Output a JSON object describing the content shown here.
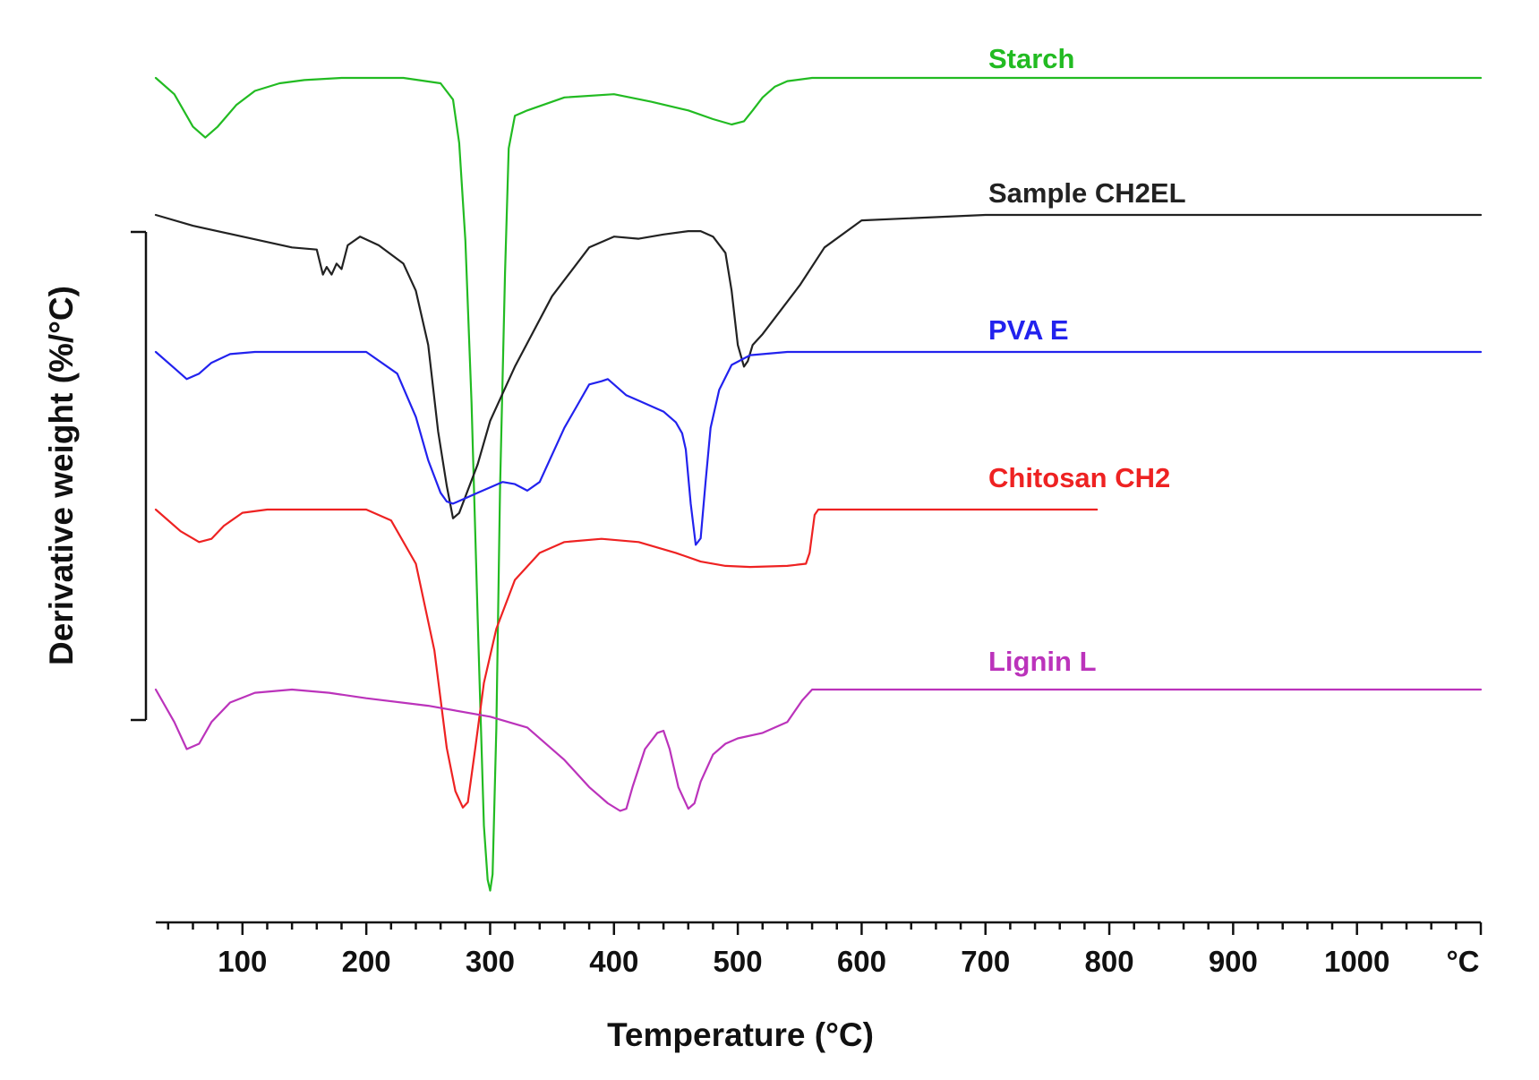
{
  "chart_data": {
    "type": "line",
    "title": "",
    "xlabel": "Temperature (°C)",
    "ylabel": "Derivative weight (%/°C)",
    "xlim": [
      30,
      1100
    ],
    "x_ticks": [
      100,
      200,
      300,
      400,
      500,
      600,
      700,
      800,
      900,
      1000
    ],
    "x_tick_labels": [
      "100",
      "200",
      "300",
      "400",
      "500",
      "600",
      "700",
      "800",
      "900",
      "1000"
    ],
    "x_unit_tick_label": "°C",
    "y_ticks_shown": false,
    "curves_offset_vertically": true,
    "series": [
      {
        "name": "Starch",
        "color": "#22bb22",
        "x": [
          30,
          45,
          60,
          70,
          80,
          95,
          110,
          130,
          150,
          180,
          230,
          260,
          270,
          275,
          280,
          285,
          290,
          295,
          298,
          300,
          302,
          305,
          308,
          312,
          315,
          320,
          330,
          360,
          400,
          430,
          460,
          480,
          495,
          505,
          512,
          520,
          530,
          540,
          560,
          600,
          700,
          800,
          900,
          1000,
          1100
        ],
        "y": [
          0,
          -0.15,
          -0.45,
          -0.55,
          -0.45,
          -0.25,
          -0.12,
          -0.05,
          -0.02,
          0,
          0,
          -0.05,
          -0.2,
          -0.6,
          -1.5,
          -3.0,
          -5.0,
          -6.9,
          -7.4,
          -7.5,
          -7.35,
          -6.0,
          -3.8,
          -1.8,
          -0.65,
          -0.35,
          -0.3,
          -0.18,
          -0.15,
          -0.22,
          -0.3,
          -0.38,
          -0.43,
          -0.4,
          -0.3,
          -0.18,
          -0.08,
          -0.03,
          0,
          0,
          0,
          0,
          0,
          0,
          0
        ]
      },
      {
        "name": "Sample CH2EL",
        "color": "#222222",
        "x": [
          30,
          60,
          100,
          140,
          160,
          165,
          168,
          172,
          176,
          180,
          185,
          195,
          210,
          230,
          240,
          250,
          258,
          265,
          270,
          275,
          280,
          290,
          300,
          320,
          350,
          380,
          400,
          420,
          440,
          460,
          470,
          480,
          490,
          495,
          500,
          505,
          508,
          512,
          520,
          530,
          550,
          570,
          600,
          700,
          800,
          900,
          1000,
          1100
        ],
        "y": [
          0,
          -0.1,
          -0.2,
          -0.3,
          -0.32,
          -0.55,
          -0.48,
          -0.55,
          -0.45,
          -0.5,
          -0.28,
          -0.2,
          -0.28,
          -0.45,
          -0.7,
          -1.2,
          -2.0,
          -2.5,
          -2.8,
          -2.75,
          -2.6,
          -2.3,
          -1.9,
          -1.4,
          -0.75,
          -0.3,
          -0.2,
          -0.22,
          -0.18,
          -0.15,
          -0.15,
          -0.2,
          -0.35,
          -0.7,
          -1.2,
          -1.4,
          -1.35,
          -1.2,
          -1.1,
          -0.95,
          -0.65,
          -0.3,
          -0.05,
          0,
          0,
          0,
          0,
          0
        ]
      },
      {
        "name": "PVA E",
        "color": "#2222ee",
        "x": [
          30,
          45,
          55,
          65,
          75,
          90,
          110,
          150,
          200,
          225,
          240,
          250,
          260,
          265,
          270,
          280,
          290,
          300,
          310,
          320,
          330,
          340,
          350,
          360,
          370,
          380,
          390,
          395,
          400,
          410,
          420,
          440,
          450,
          455,
          458,
          462,
          466,
          470,
          474,
          478,
          485,
          495,
          510,
          540,
          600,
          700,
          800,
          900,
          1000,
          1100
        ],
        "y": [
          0,
          -0.15,
          -0.25,
          -0.2,
          -0.1,
          -0.02,
          0,
          0,
          0,
          -0.2,
          -0.6,
          -1.0,
          -1.3,
          -1.38,
          -1.4,
          -1.35,
          -1.3,
          -1.25,
          -1.2,
          -1.22,
          -1.28,
          -1.2,
          -0.95,
          -0.7,
          -0.5,
          -0.3,
          -0.27,
          -0.25,
          -0.3,
          -0.4,
          -0.45,
          -0.55,
          -0.65,
          -0.75,
          -0.9,
          -1.4,
          -1.78,
          -1.72,
          -1.2,
          -0.7,
          -0.35,
          -0.12,
          -0.03,
          0,
          0,
          0,
          0,
          0,
          0,
          0
        ]
      },
      {
        "name": "Chitosan CH2",
        "color": "#ee2222",
        "x": [
          30,
          50,
          65,
          75,
          85,
          100,
          120,
          200,
          220,
          240,
          255,
          265,
          272,
          278,
          282,
          288,
          295,
          305,
          320,
          340,
          360,
          390,
          420,
          450,
          470,
          490,
          510,
          540,
          555,
          558,
          562,
          565,
          600,
          700,
          790
        ],
        "y": [
          0,
          -0.2,
          -0.3,
          -0.27,
          -0.15,
          -0.03,
          0,
          0,
          -0.1,
          -0.5,
          -1.3,
          -2.2,
          -2.6,
          -2.75,
          -2.7,
          -2.2,
          -1.6,
          -1.1,
          -0.65,
          -0.4,
          -0.3,
          -0.27,
          -0.3,
          -0.4,
          -0.48,
          -0.52,
          -0.53,
          -0.52,
          -0.5,
          -0.4,
          -0.05,
          0,
          0,
          0,
          0
        ]
      },
      {
        "name": "Lignin L",
        "color": "#bb33bb",
        "x": [
          30,
          45,
          55,
          65,
          75,
          90,
          110,
          140,
          170,
          200,
          250,
          300,
          330,
          360,
          380,
          395,
          405,
          410,
          415,
          425,
          435,
          440,
          445,
          452,
          460,
          465,
          470,
          480,
          490,
          500,
          520,
          540,
          552,
          560,
          570,
          600,
          700,
          800,
          900,
          1000,
          1100
        ],
        "y": [
          0,
          -0.3,
          -0.55,
          -0.5,
          -0.3,
          -0.12,
          -0.03,
          0,
          -0.03,
          -0.08,
          -0.15,
          -0.25,
          -0.35,
          -0.65,
          -0.9,
          -1.05,
          -1.12,
          -1.1,
          -0.9,
          -0.55,
          -0.4,
          -0.38,
          -0.55,
          -0.9,
          -1.1,
          -1.05,
          -0.85,
          -0.6,
          -0.5,
          -0.45,
          -0.4,
          -0.3,
          -0.1,
          0,
          0,
          0,
          0,
          0,
          0,
          0,
          0
        ]
      }
    ]
  }
}
